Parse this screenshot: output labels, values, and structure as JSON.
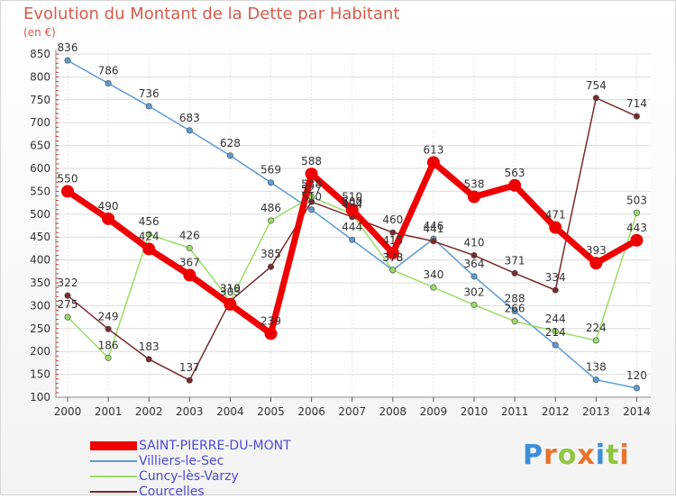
{
  "title": "Evolution du Montant de la Dette par Habitant",
  "subtitle": "(en €)",
  "brand": "Proxiti",
  "chart_data": {
    "type": "line",
    "x": [
      "2000",
      "2001",
      "2002",
      "2003",
      "2004",
      "2005",
      "2006",
      "2007",
      "2008",
      "2009",
      "2010",
      "2011",
      "2012",
      "2013",
      "2014"
    ],
    "ylim": [
      100,
      850
    ],
    "yticks": [
      100,
      150,
      200,
      250,
      300,
      350,
      400,
      450,
      500,
      550,
      600,
      650,
      700,
      750,
      800,
      850
    ],
    "grid": true,
    "legend_position": "bottom-left",
    "series": [
      {
        "name": "SAINT-PIERRE-DU-MONT",
        "color": "#ee0000",
        "values": [
          550,
          490,
          424,
          367,
          303,
          239,
          588,
          510,
          415,
          613,
          538,
          563,
          471,
          393,
          443
        ]
      },
      {
        "name": "Villiers-le-Sec",
        "color": "#5b9bd5",
        "values": [
          836,
          786,
          736,
          683,
          628,
          569,
          510,
          444,
          378,
          446,
          364,
          288,
          214,
          138,
          120
        ]
      },
      {
        "name": "Cuncy-lès-Varzy",
        "color": "#99dd66",
        "values": [
          275,
          186,
          456,
          426,
          310,
          486,
          538,
          500,
          378,
          340,
          302,
          266,
          244,
          224,
          503
        ]
      },
      {
        "name": "Courcelles",
        "color": "#7a2a2a",
        "values": [
          322,
          249,
          183,
          137,
          310,
          385,
          527,
          494,
          460,
          441,
          410,
          371,
          334,
          754,
          714
        ]
      }
    ]
  }
}
